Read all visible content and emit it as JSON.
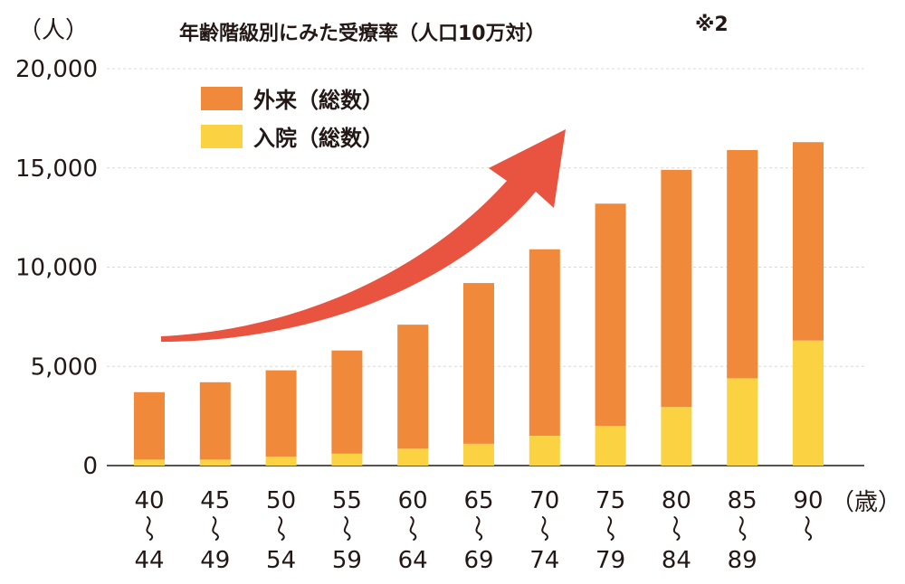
{
  "chart_data": {
    "type": "bar",
    "stacked": true,
    "title": "年齢階級別にみた受療率（人口10万対）",
    "title_note": "※2",
    "ylabel": "（人）",
    "xlabel": "（歳）",
    "ylim": [
      0,
      20000
    ],
    "yticks": [
      0,
      5000,
      10000,
      15000,
      20000
    ],
    "ytick_labels": [
      "0",
      "5,000",
      "10,000",
      "15,000",
      "20,000"
    ],
    "grid": true,
    "legend_position": "top-left",
    "categories": [
      "40〜44",
      "45〜49",
      "50〜54",
      "55〜59",
      "60〜64",
      "65〜69",
      "70〜74",
      "75〜79",
      "80〜84",
      "85〜89",
      "90〜"
    ],
    "series": [
      {
        "name": "入院（総数）",
        "color": "#FBD342",
        "values": [
          300,
          300,
          450,
          600,
          850,
          1100,
          1500,
          2000,
          2950,
          4400,
          6300
        ]
      },
      {
        "name": "外来（総数）",
        "color": "#F0893A",
        "values": [
          3400,
          3900,
          4350,
          5200,
          6250,
          8100,
          9400,
          11200,
          11950,
          11500,
          10000
        ]
      }
    ],
    "annotation": {
      "type": "upward-trend-arrow",
      "color": "#E85440"
    }
  }
}
